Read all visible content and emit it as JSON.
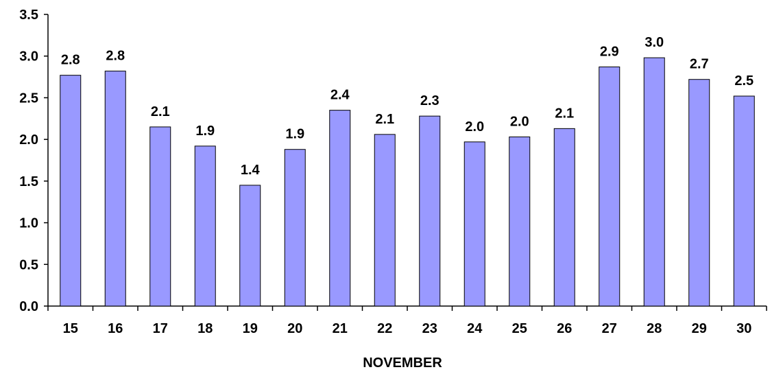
{
  "chart_data": {
    "type": "bar",
    "categories": [
      "15",
      "16",
      "17",
      "18",
      "19",
      "20",
      "21",
      "22",
      "23",
      "24",
      "25",
      "26",
      "27",
      "28",
      "29",
      "30"
    ],
    "values": [
      2.77,
      2.82,
      2.15,
      1.92,
      1.45,
      1.88,
      2.35,
      2.06,
      2.28,
      1.97,
      2.03,
      2.13,
      2.87,
      2.98,
      2.72,
      2.52
    ],
    "data_labels": [
      "2.8",
      "2.8",
      "2.1",
      "1.9",
      "1.4",
      "1.9",
      "2.4",
      "2.1",
      "2.3",
      "2.0",
      "2.0",
      "2.1",
      "2.9",
      "3.0",
      "2.7",
      "2.5"
    ],
    "title": "",
    "xlabel": "NOVEMBER",
    "ylabel": "",
    "ylim": [
      0,
      3.5
    ],
    "yticks": [
      "0.0",
      "0.5",
      "1.0",
      "1.5",
      "2.0",
      "2.5",
      "3.0",
      "3.5"
    ],
    "grid": false,
    "legend": "none",
    "bar_color": "#9999ff"
  }
}
